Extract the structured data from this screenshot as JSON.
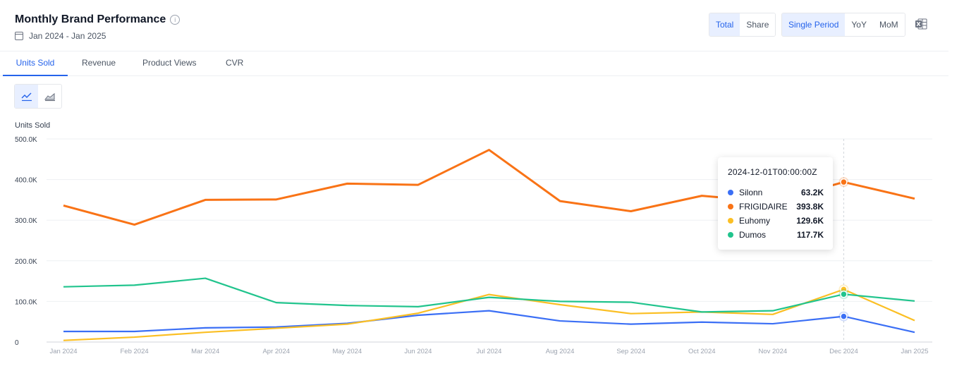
{
  "header": {
    "title": "Monthly Brand Performance",
    "info_icon": "info-circle-icon",
    "date_range": "Jan 2024 - Jan 2025",
    "calendar_icon": "calendar-icon",
    "total_label": "Total",
    "share_label": "Share",
    "single_period_label": "Single Period",
    "yoy_label": "YoY",
    "mom_label": "MoM",
    "export_icon": "excel-export-icon"
  },
  "tabs": [
    {
      "label": "Units Sold",
      "active": true
    },
    {
      "label": "Revenue",
      "active": false
    },
    {
      "label": "Product Views",
      "active": false
    },
    {
      "label": "CVR",
      "active": false
    }
  ],
  "view_toggle": {
    "line_icon": "line-chart-icon",
    "area_icon": "area-chart-icon",
    "active": "line"
  },
  "chart_data": {
    "type": "line",
    "ylabel": "Units Sold",
    "ylim": [
      0,
      500000
    ],
    "y_ticks": [
      "0",
      "100.0K",
      "200.0K",
      "300.0K",
      "400.0K",
      "500.0K"
    ],
    "categories": [
      "Jan 2024",
      "Feb 2024",
      "Mar 2024",
      "Apr 2024",
      "May 2024",
      "Jun 2024",
      "Jul 2024",
      "Aug 2024",
      "Sep 2024",
      "Oct 2024",
      "Nov 2024",
      "Dec 2024",
      "Jan 2025"
    ],
    "grid": true,
    "series": [
      {
        "name": "Silonn",
        "color": "#3b6ff5",
        "values": [
          26000,
          26000,
          35000,
          37000,
          46000,
          66000,
          77000,
          52000,
          44000,
          49000,
          45000,
          63200,
          24000
        ]
      },
      {
        "name": "FRIGIDAIRE",
        "color": "#f97316",
        "values": [
          336000,
          289000,
          350000,
          351000,
          390000,
          387000,
          473000,
          347000,
          322000,
          360000,
          345000,
          393800,
          353000
        ]
      },
      {
        "name": "Euhomy",
        "color": "#fbbf24",
        "values": [
          4000,
          12000,
          24000,
          34000,
          44000,
          71000,
          117000,
          92000,
          70000,
          74000,
          68000,
          129600,
          53000
        ]
      },
      {
        "name": "Dumos",
        "color": "#21c48d",
        "values": [
          136000,
          140000,
          157000,
          97000,
          90000,
          87000,
          110000,
          100000,
          98000,
          74000,
          77000,
          117700,
          101000
        ]
      }
    ],
    "highlight_index": 11,
    "tooltip": {
      "title": "2024-12-01T00:00:00Z",
      "rows": [
        {
          "name": "Silonn",
          "value": "63.2K",
          "color": "#3b6ff5"
        },
        {
          "name": "FRIGIDAIRE",
          "value": "393.8K",
          "color": "#f97316"
        },
        {
          "name": "Euhomy",
          "value": "129.6K",
          "color": "#fbbf24"
        },
        {
          "name": "Dumos",
          "value": "117.7K",
          "color": "#21c48d"
        }
      ]
    }
  }
}
